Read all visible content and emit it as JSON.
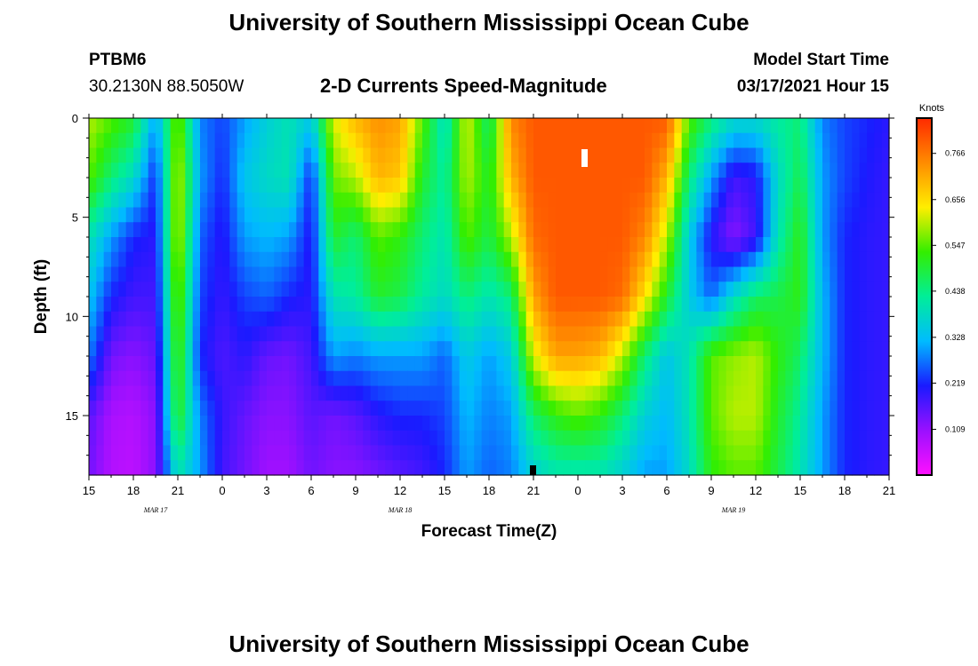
{
  "header": {
    "title": "University of Southern Mississippi Ocean Cube",
    "station_id": "PTBM6",
    "station_coords": "30.2130N 88.5050W",
    "subtitle": "2-D Currents Speed-Magnitude",
    "model_label": "Model Start Time",
    "model_time": "03/17/2021 Hour 15"
  },
  "footer": {
    "title": "University of Southern Mississippi Ocean Cube"
  },
  "chart_data": {
    "type": "heatmap",
    "title": "2-D Currents Speed-Magnitude",
    "xlabel": "Forecast Time(Z)",
    "ylabel": "Depth (ft)",
    "x_range_hours": [
      0,
      54
    ],
    "y_range_ft": [
      0,
      18
    ],
    "y_inverted": true,
    "x_tick_labels": [
      "15",
      "18",
      "21",
      "0",
      "3",
      "6",
      "9",
      "12",
      "15",
      "18",
      "21",
      "0",
      "3",
      "6",
      "9",
      "12",
      "15",
      "18",
      "21"
    ],
    "y_ticks": [
      0,
      5,
      10,
      15
    ],
    "date_labels": [
      {
        "text": "MAR 17",
        "hour": 4.5
      },
      {
        "text": "MAR 18",
        "hour": 21
      },
      {
        "text": "MAR 19",
        "hour": 43.5
      }
    ],
    "colorbar": {
      "unit": "Knots",
      "range": [
        0.0,
        0.85
      ],
      "tick_values": [
        0.109,
        0.219,
        0.328,
        0.438,
        0.547,
        0.656,
        0.766
      ],
      "tick_labels": [
        "0.109",
        "0.219",
        "0.328",
        "0.438",
        "0.547",
        "0.656",
        "0.766"
      ],
      "colors": [
        "#ff10ff",
        "#9a10ff",
        "#1a1aff",
        "#00bbff",
        "#00ee99",
        "#33ee00",
        "#ffee00",
        "#ff8c00",
        "#ff2a00"
      ]
    },
    "time_hours": [
      0,
      1.5,
      3,
      4.5,
      6,
      7.5,
      9,
      10.5,
      12,
      13.5,
      15,
      16.5,
      18,
      19.5,
      21,
      22.5,
      24,
      25.5,
      27,
      28.5,
      30,
      31.5,
      33,
      34.5,
      36,
      37.5,
      39,
      40.5,
      42,
      43.5,
      45,
      46.5,
      48,
      49.5,
      51,
      52.5,
      54
    ],
    "depth_ft": [
      0,
      3,
      6,
      9,
      12,
      15,
      18
    ],
    "speed_knots": [
      [
        0.6,
        0.55,
        0.5,
        0.3,
        0.58,
        0.28,
        0.24,
        0.3,
        0.36,
        0.4,
        0.35,
        0.62,
        0.7,
        0.74,
        0.72,
        0.55,
        0.38,
        0.62,
        0.45,
        0.75,
        0.8,
        0.8,
        0.8,
        0.8,
        0.8,
        0.8,
        0.8,
        0.55,
        0.45,
        0.38,
        0.38,
        0.42,
        0.45,
        0.28,
        0.24,
        0.22,
        0.2
      ],
      [
        0.55,
        0.45,
        0.38,
        0.22,
        0.62,
        0.3,
        0.22,
        0.34,
        0.38,
        0.4,
        0.22,
        0.56,
        0.6,
        0.7,
        0.68,
        0.5,
        0.42,
        0.6,
        0.5,
        0.7,
        0.8,
        0.8,
        0.8,
        0.8,
        0.8,
        0.8,
        0.7,
        0.45,
        0.3,
        0.18,
        0.2,
        0.38,
        0.48,
        0.3,
        0.24,
        0.21,
        0.19
      ],
      [
        0.4,
        0.3,
        0.22,
        0.2,
        0.62,
        0.26,
        0.2,
        0.3,
        0.32,
        0.3,
        0.2,
        0.5,
        0.45,
        0.55,
        0.52,
        0.45,
        0.4,
        0.55,
        0.48,
        0.6,
        0.78,
        0.8,
        0.8,
        0.8,
        0.8,
        0.75,
        0.6,
        0.35,
        0.2,
        0.12,
        0.18,
        0.4,
        0.52,
        0.3,
        0.22,
        0.2,
        0.19
      ],
      [
        0.34,
        0.22,
        0.18,
        0.18,
        0.58,
        0.24,
        0.19,
        0.24,
        0.26,
        0.22,
        0.2,
        0.4,
        0.42,
        0.5,
        0.48,
        0.42,
        0.38,
        0.45,
        0.4,
        0.45,
        0.72,
        0.8,
        0.8,
        0.8,
        0.78,
        0.65,
        0.5,
        0.35,
        0.26,
        0.38,
        0.46,
        0.48,
        0.52,
        0.32,
        0.22,
        0.2,
        0.19
      ],
      [
        0.28,
        0.14,
        0.12,
        0.15,
        0.55,
        0.22,
        0.17,
        0.2,
        0.15,
        0.14,
        0.18,
        0.3,
        0.28,
        0.3,
        0.3,
        0.3,
        0.26,
        0.35,
        0.3,
        0.35,
        0.62,
        0.72,
        0.72,
        0.7,
        0.6,
        0.45,
        0.34,
        0.4,
        0.55,
        0.58,
        0.6,
        0.52,
        0.46,
        0.32,
        0.22,
        0.2,
        0.19
      ],
      [
        0.16,
        0.09,
        0.08,
        0.12,
        0.52,
        0.28,
        0.19,
        0.15,
        0.12,
        0.12,
        0.16,
        0.14,
        0.16,
        0.2,
        0.22,
        0.22,
        0.24,
        0.32,
        0.28,
        0.3,
        0.46,
        0.52,
        0.55,
        0.52,
        0.45,
        0.36,
        0.32,
        0.4,
        0.55,
        0.6,
        0.6,
        0.5,
        0.42,
        0.3,
        0.22,
        0.2,
        0.19
      ],
      [
        0.14,
        0.08,
        0.07,
        0.12,
        0.4,
        0.3,
        0.18,
        0.14,
        0.1,
        0.1,
        0.14,
        0.12,
        0.12,
        0.14,
        0.16,
        0.18,
        0.22,
        0.3,
        0.26,
        0.28,
        0.36,
        0.4,
        0.4,
        0.4,
        0.36,
        0.3,
        0.3,
        0.38,
        0.52,
        0.55,
        0.55,
        0.48,
        0.4,
        0.3,
        0.22,
        0.2,
        0.19
      ]
    ]
  }
}
